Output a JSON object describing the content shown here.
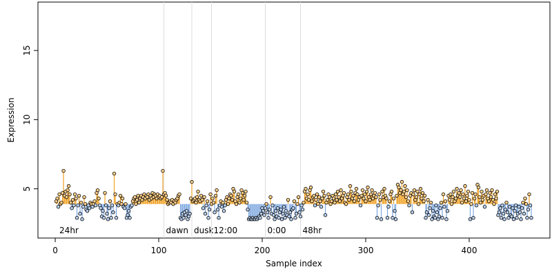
{
  "chart_data": {
    "type": "lollipop",
    "xlabel": "Sample index",
    "ylabel": "Expression",
    "xlim": [
      -16.7,
      478
    ],
    "ylim": [
      1.44,
      18.5
    ],
    "xticks": [
      0,
      100,
      200,
      300,
      400
    ],
    "yticks": [
      5,
      10,
      15
    ],
    "baseline": 3.9,
    "color_above": "#f0a020",
    "color_below": "#7fa8e0",
    "point_above": "#ffd08a",
    "point_below": "#b8d0f0",
    "annotations": [
      {
        "x": 2,
        "label": "24hr"
      },
      {
        "x": 105,
        "label": "dawn"
      },
      {
        "x": 132,
        "label": "dusk"
      },
      {
        "x": 151,
        "label": "12:00"
      },
      {
        "x": 203,
        "label": "0:00"
      },
      {
        "x": 237,
        "label": "48hr"
      }
    ],
    "values": [
      4.1,
      4.3,
      3.7,
      4.6,
      3.9,
      4.0,
      4.7,
      6.3,
      4.5,
      4.8,
      4.4,
      4.9,
      5.2,
      4.6,
      4.0,
      3.6,
      4.2,
      3.8,
      4.6,
      4.3,
      2.9,
      3.8,
      4.5,
      3.2,
      4.0,
      2.8,
      3.7,
      4.4,
      3.9,
      3.5,
      3.4,
      3.8,
      3.6,
      4.0,
      3.9,
      3.7,
      3.9,
      4.1,
      3.8,
      4.7,
      4.9,
      4.3,
      3.8,
      3.6,
      3.0,
      3.4,
      2.9,
      4.7,
      3.8,
      3.2,
      2.8,
      3.6,
      4.1,
      2.9,
      3.8,
      3.3,
      6.1,
      4.6,
      2.9,
      3.9,
      3.8,
      4.0,
      4.5,
      3.9,
      4.3,
      3.7,
      3.6,
      3.9,
      2.9,
      3.1,
      3.4,
      2.9,
      3.7,
      3.8,
      4.1,
      4.3,
      4.4,
      3.9,
      4.2,
      4.5,
      4.0,
      4.3,
      4.5,
      4.2,
      4.4,
      4.6,
      4.3,
      4.5,
      4.4,
      4.6,
      4.2,
      4.5,
      4.3,
      4.7,
      4.4,
      4.6,
      4.5,
      4.3,
      4.6,
      4.4,
      4.5,
      4.3,
      4.4,
      6.3,
      4.6,
      4.7,
      4.5,
      4.2,
      3.9,
      4.0,
      4.1,
      4.0,
      4.2,
      3.9,
      4.1,
      4.0,
      4.2,
      4.3,
      4.5,
      4.6,
      2.9,
      2.8,
      3.2,
      2.9,
      3.3,
      3.1,
      3.4,
      2.8,
      3.0,
      3.2,
      4.3,
      5.5,
      4.1,
      4.2,
      4.3,
      4.0,
      4.4,
      4.8,
      4.2,
      4.1,
      4.5,
      4.2,
      3.6,
      4.4,
      3.2,
      3.8,
      4.1,
      2.9,
      3.5,
      4.6,
      3.9,
      4.3,
      4.0,
      3.3,
      4.5,
      4.9,
      3.5,
      2.9,
      3.8,
      4.1,
      3.7,
      4.0,
      3.4,
      3.8,
      4.2,
      4.4,
      3.9,
      4.3,
      4.6,
      4.5,
      4.2,
      5.0,
      4.8,
      4.1,
      3.9,
      4.4,
      4.6,
      4.0,
      4.3,
      4.9,
      4.7,
      4.2,
      4.5,
      4.8,
      4.0,
      3.5,
      2.8,
      2.9,
      2.8,
      2.8,
      2.9,
      2.8,
      2.8,
      2.9,
      2.8,
      2.9,
      3.0,
      2.9,
      3.2,
      3.6,
      3.4,
      3.1,
      3.6,
      3.9,
      3.3,
      2.9,
      3.5,
      4.4,
      3.2,
      3.8,
      3.1,
      2.8,
      3.4,
      3.0,
      3.6,
      2.9,
      3.3,
      3.5,
      2.8,
      3.2,
      3.7,
      2.9,
      3.4,
      3.1,
      4.2,
      3.0,
      3.3,
      2.8,
      3.5,
      3.6,
      4.1,
      2.9,
      3.2,
      3.9,
      4.4,
      3.3,
      3.0,
      3.8,
      3.5,
      4.0,
      4.8,
      5.0,
      4.3,
      4.6,
      4.2,
      4.9,
      5.1,
      4.1,
      4.4,
      4.5,
      3.8,
      4.2,
      4.6,
      3.9,
      4.4,
      4.1,
      3.7,
      4.3,
      4.8,
      4.5,
      3.1,
      4.0,
      4.2,
      4.6,
      4.4,
      3.9,
      4.1,
      4.5,
      4.3,
      4.0,
      4.6,
      4.2,
      4.8,
      4.4,
      4.1,
      4.9,
      4.3,
      4.5,
      4.7,
      4.0,
      3.9,
      4.4,
      4.6,
      4.2,
      5.2,
      4.8,
      4.3,
      4.5,
      4.1,
      4.7,
      5.0,
      4.6,
      4.2,
      4.4,
      3.8,
      4.5,
      4.9,
      4.3,
      4.6,
      4.1,
      4.8,
      5.1,
      4.4,
      4.2,
      4.6,
      4.9,
      4.3,
      4.5,
      4.7,
      4.4,
      2.9,
      3.8,
      4.6,
      4.2,
      2.8,
      4.8,
      4.4,
      5.0,
      4.5,
      4.3,
      2.9,
      3.7,
      4.1,
      4.6,
      4.8,
      2.9,
      4.3,
      3.4,
      2.8,
      4.5,
      5.3,
      5.1,
      4.7,
      4.9,
      5.5,
      4.6,
      4.8,
      5.2,
      4.4,
      4.9,
      4.1,
      3.8,
      4.5,
      4.7,
      3.3,
      4.6,
      4.9,
      4.2,
      4.4,
      4.8,
      3.9,
      4.6,
      5.0,
      4.3,
      4.7,
      4.1,
      4.5,
      2.9,
      3.3,
      4.2,
      3.1,
      3.6,
      4.0,
      2.8,
      3.4,
      3.0,
      2.9,
      3.8,
      3.3,
      2.8,
      3.0,
      3.6,
      4.0,
      2.9,
      4.6,
      3.7,
      4.1,
      2.8,
      3.4,
      4.5,
      4.2,
      4.6,
      3.9,
      4.4,
      4.8,
      4.1,
      4.3,
      5.0,
      4.5,
      4.7,
      4.4,
      4.9,
      4.0,
      4.6,
      4.3,
      5.2,
      4.1,
      4.5,
      4.8,
      4.2,
      2.8,
      3.9,
      4.7,
      2.9,
      4.3,
      4.6,
      3.8,
      5.3,
      5.1,
      4.4,
      4.0,
      4.8,
      4.2,
      4.5,
      3.7,
      4.6,
      4.9,
      4.3,
      4.1,
      4.7,
      4.4,
      4.9,
      4.2,
      3.9,
      4.6,
      4.3,
      4.8,
      3.1,
      3.3,
      3.6,
      2.9,
      3.8,
      3.2,
      2.8,
      3.5,
      4.0,
      3.3,
      2.9,
      3.7,
      3.1,
      3.0,
      3.6,
      2.8,
      3.4,
      3.8,
      2.9,
      3.2,
      3.7,
      3.3,
      2.8,
      3.6,
      4.0,
      3.2,
      4.3,
      3.9,
      2.9,
      3.5,
      4.6,
      3.8,
      2.9
    ]
  }
}
